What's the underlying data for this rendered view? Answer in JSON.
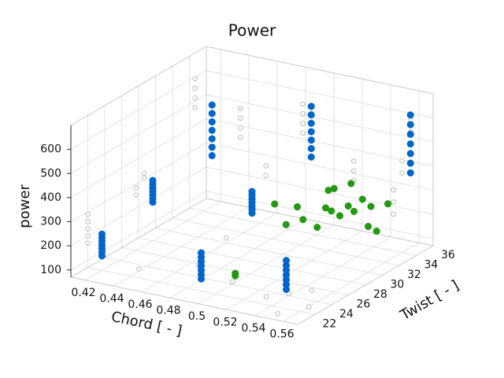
{
  "chart_data": {
    "type": "scatter3d",
    "title": "Power",
    "xlabel": "Chord [ - ]",
    "ylabel": "Twist [ - ]",
    "zlabel": "power",
    "xlim": [
      0.41,
      0.57
    ],
    "ylim": [
      20,
      36
    ],
    "zlim": [
      70,
      700
    ],
    "xticks": [
      0.42,
      0.44,
      0.46,
      0.48,
      0.5,
      0.52,
      0.54,
      0.56
    ],
    "yticks": [
      22,
      24,
      26,
      28,
      30,
      32,
      34,
      36
    ],
    "zticks": [
      100,
      200,
      300,
      400,
      500,
      600
    ],
    "grid": true,
    "series": [
      {
        "color": "#bbbbbb",
        "marker": "hollow",
        "x": [
          0.41,
          0.41,
          0.41,
          0.41,
          0.41,
          0.42,
          0.42,
          0.42,
          0.42,
          0.42,
          0.42,
          0.42,
          0.42,
          0.44,
          0.44,
          0.44,
          0.44,
          0.47,
          0.47,
          0.49,
          0.49,
          0.49,
          0.49,
          0.52,
          0.52,
          0.52,
          0.56,
          0.56,
          0.56,
          0.56,
          0.56,
          0.56,
          0.56,
          0.56,
          0.47,
          0.5,
          0.53,
          0.54,
          0.55,
          0.56,
          0.55,
          0.44,
          0.46
        ],
        "y": [
          22,
          22,
          22,
          22,
          22,
          26,
          26,
          27,
          27,
          33,
          33,
          33,
          33,
          35,
          35,
          35,
          35,
          33,
          33,
          34,
          34,
          34,
          34,
          35,
          35,
          35,
          33,
          33,
          33,
          34,
          34,
          35,
          35,
          35,
          25,
          24,
          23,
          24,
          25,
          23,
          21,
          23,
          30
        ],
        "z": [
          170,
          200,
          230,
          260,
          290,
          300,
          330,
          350,
          370,
          520,
          560,
          600,
          640,
          380,
          420,
          460,
          500,
          300,
          340,
          480,
          520,
          560,
          600,
          300,
          340,
          380,
          250,
          300,
          350,
          400,
          450,
          500,
          550,
          600,
          90,
          80,
          75,
          80,
          85,
          70,
          70,
          80,
          90
        ]
      },
      {
        "color": "#0066cc",
        "marker": "filled",
        "x": [
          0.42,
          0.42,
          0.42,
          0.42,
          0.42,
          0.42,
          0.42,
          0.42,
          0.42,
          0.42,
          0.42,
          0.42,
          0.42,
          0.42,
          0.42,
          0.42,
          0.42,
          0.42,
          0.42,
          0.42,
          0.42,
          0.49,
          0.49,
          0.49,
          0.49,
          0.49,
          0.49,
          0.49,
          0.49,
          0.49,
          0.49,
          0.49,
          0.49,
          0.49,
          0.49,
          0.49,
          0.49,
          0.49,
          0.49,
          0.49,
          0.49,
          0.49,
          0.55,
          0.55,
          0.55,
          0.55,
          0.55,
          0.55,
          0.55,
          0.56,
          0.56,
          0.56,
          0.56,
          0.56,
          0.56,
          0.56
        ],
        "y": [
          22,
          22,
          22,
          22,
          22,
          22,
          22,
          28,
          28,
          28,
          28,
          28,
          28,
          28,
          35,
          35,
          35,
          35,
          35,
          35,
          35,
          28,
          28,
          28,
          28,
          28,
          28,
          28,
          35,
          35,
          35,
          35,
          35,
          35,
          35,
          22,
          22,
          22,
          22,
          22,
          22,
          22,
          22,
          22,
          22,
          22,
          22,
          22,
          22,
          35,
          35,
          35,
          35,
          35,
          35,
          35
        ],
        "z": [
          130,
          145,
          160,
          175,
          190,
          205,
          220,
          230,
          245,
          260,
          275,
          290,
          305,
          320,
          280,
          315,
          350,
          385,
          420,
          455,
          490,
          270,
          285,
          300,
          315,
          330,
          345,
          360,
          360,
          395,
          430,
          465,
          500,
          535,
          570,
          120,
          138,
          156,
          174,
          192,
          210,
          228,
          150,
          170,
          190,
          210,
          230,
          250,
          270,
          380,
          420,
          460,
          500,
          540,
          580,
          620
        ]
      },
      {
        "color": "#229911",
        "marker": "filled",
        "x": [
          0.52,
          0.52,
          0.5,
          0.51,
          0.52,
          0.53,
          0.53,
          0.54,
          0.54,
          0.54,
          0.55,
          0.55,
          0.53,
          0.55,
          0.56,
          0.52,
          0.53,
          0.55,
          0.56,
          0.52
        ],
        "y": [
          21,
          21,
          29,
          30,
          29,
          30,
          29,
          30,
          31,
          29,
          30,
          31,
          31,
          32,
          30,
          32,
          33,
          34,
          31,
          27
        ],
        "z": [
          200,
          190,
          300,
          280,
          260,
          300,
          240,
          280,
          300,
          320,
          310,
          340,
          360,
          290,
          260,
          320,
          340,
          260,
          220,
          280
        ]
      }
    ]
  }
}
